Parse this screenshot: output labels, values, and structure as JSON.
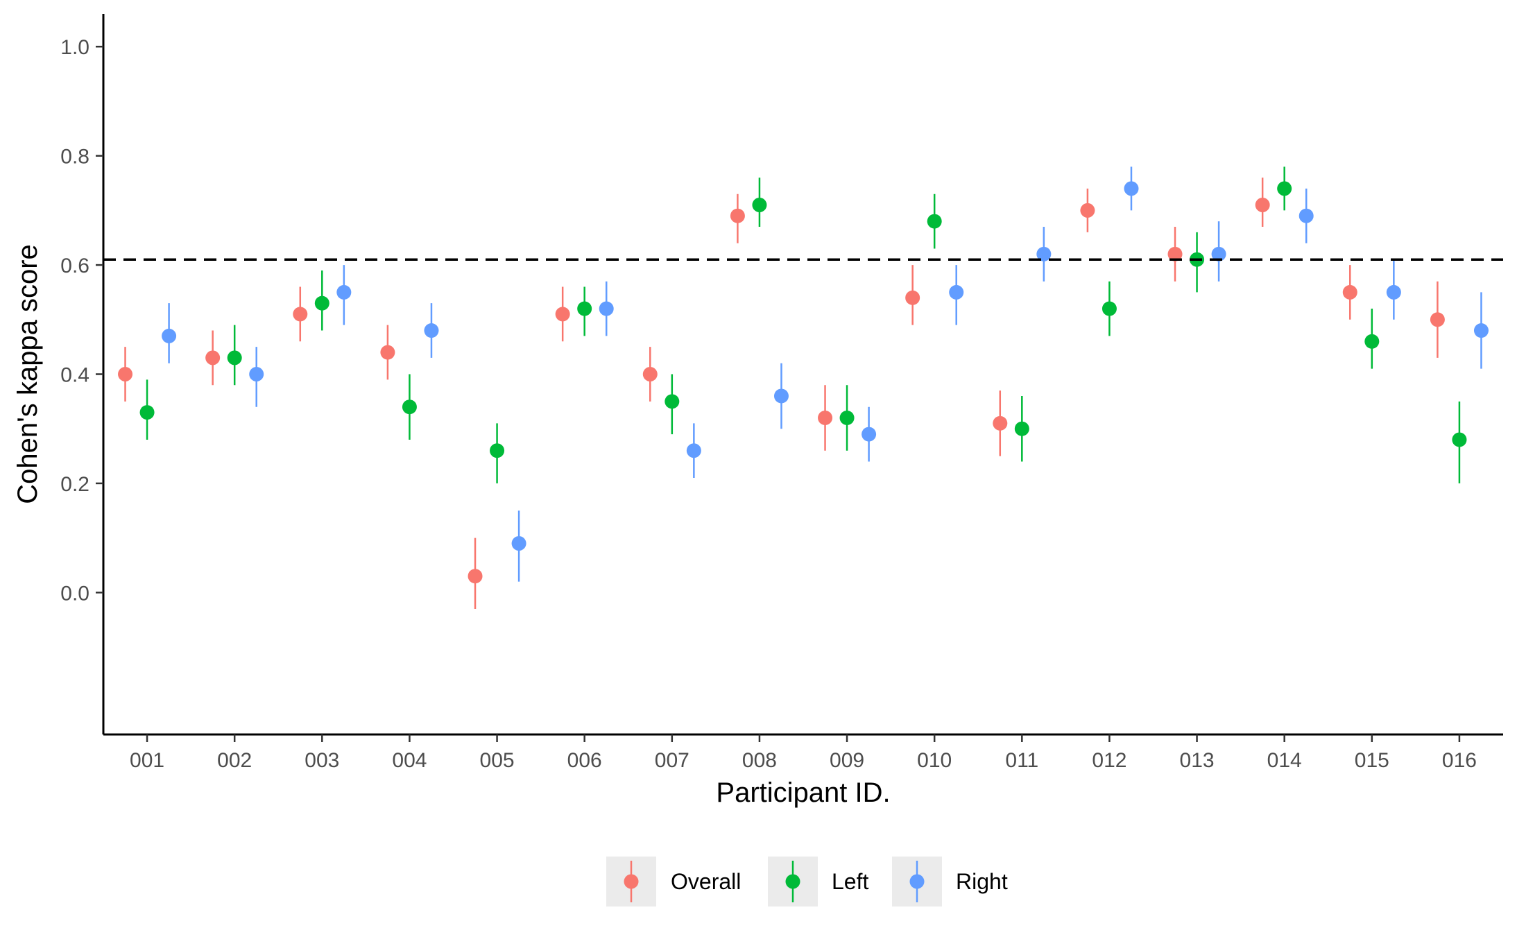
{
  "chart_data": {
    "type": "scatter",
    "xlabel": "Participant ID.",
    "ylabel": "Cohen's kappa score",
    "categories": [
      "001",
      "002",
      "003",
      "004",
      "005",
      "006",
      "007",
      "008",
      "009",
      "010",
      "011",
      "012",
      "013",
      "014",
      "015",
      "016"
    ],
    "ylim": [
      -0.26,
      1.06
    ],
    "yticks": [
      0.0,
      0.2,
      0.4,
      0.6,
      0.8,
      1.0
    ],
    "ytick_labels": [
      "0.0",
      "0.2",
      "0.4",
      "0.6",
      "0.8",
      "1.0"
    ],
    "reference_line": 0.61,
    "grid": false,
    "legend_position": "bottom",
    "series": [
      {
        "name": "Overall",
        "color": "#F8766D",
        "values": [
          0.4,
          0.43,
          0.51,
          0.44,
          0.03,
          0.51,
          0.4,
          0.69,
          0.32,
          0.54,
          0.31,
          0.7,
          0.62,
          0.71,
          0.55,
          0.5
        ],
        "lower": [
          0.35,
          0.38,
          0.46,
          0.39,
          -0.03,
          0.46,
          0.35,
          0.64,
          0.26,
          0.49,
          0.25,
          0.66,
          0.57,
          0.67,
          0.5,
          0.43
        ],
        "upper": [
          0.45,
          0.48,
          0.56,
          0.49,
          0.1,
          0.56,
          0.45,
          0.73,
          0.38,
          0.6,
          0.37,
          0.74,
          0.67,
          0.76,
          0.6,
          0.57
        ]
      },
      {
        "name": "Left",
        "color": "#00BA38",
        "values": [
          0.33,
          0.43,
          0.53,
          0.34,
          0.26,
          0.52,
          0.35,
          0.71,
          0.32,
          0.68,
          0.3,
          0.52,
          0.61,
          0.74,
          0.46,
          0.28
        ],
        "lower": [
          0.28,
          0.38,
          0.48,
          0.28,
          0.2,
          0.47,
          0.29,
          0.67,
          0.26,
          0.63,
          0.24,
          0.47,
          0.55,
          0.7,
          0.41,
          0.2
        ],
        "upper": [
          0.39,
          0.49,
          0.59,
          0.4,
          0.31,
          0.56,
          0.4,
          0.76,
          0.38,
          0.73,
          0.36,
          0.57,
          0.66,
          0.78,
          0.52,
          0.35
        ]
      },
      {
        "name": "Right",
        "color": "#619CFF",
        "values": [
          0.47,
          0.4,
          0.55,
          0.48,
          0.09,
          0.52,
          0.26,
          0.36,
          0.29,
          0.55,
          0.62,
          0.74,
          0.62,
          0.69,
          0.55,
          0.48
        ],
        "lower": [
          0.42,
          0.34,
          0.49,
          0.43,
          0.02,
          0.47,
          0.21,
          0.3,
          0.24,
          0.49,
          0.57,
          0.7,
          0.57,
          0.64,
          0.5,
          0.41
        ],
        "upper": [
          0.53,
          0.45,
          0.6,
          0.53,
          0.15,
          0.57,
          0.31,
          0.42,
          0.34,
          0.6,
          0.67,
          0.78,
          0.68,
          0.74,
          0.61,
          0.55
        ]
      }
    ]
  }
}
